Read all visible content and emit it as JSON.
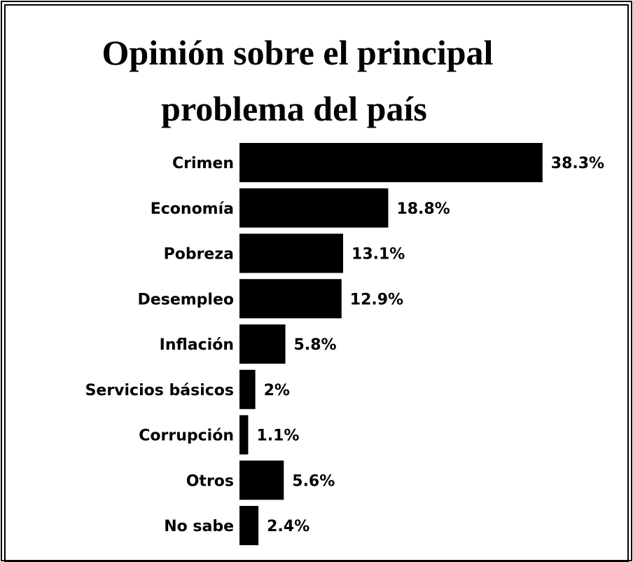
{
  "chart_data": {
    "type": "bar",
    "orientation": "horizontal",
    "title": [
      "Opinión sobre el principal",
      "problema del país"
    ],
    "categories": [
      "Crimen",
      "Economía",
      "Pobreza",
      "Desempleo",
      "Inflación",
      "Servicios básicos",
      "Corrupción",
      "Otros",
      "No sabe"
    ],
    "values": [
      38.3,
      18.8,
      13.1,
      12.9,
      5.8,
      2,
      1.1,
      5.6,
      2.4
    ],
    "value_labels": [
      "38.3%",
      "18.8%",
      "13.1%",
      "12.9%",
      "5.8%",
      "2%",
      "1.1%",
      "5.6%",
      "2.4%"
    ],
    "color": "#000000"
  }
}
